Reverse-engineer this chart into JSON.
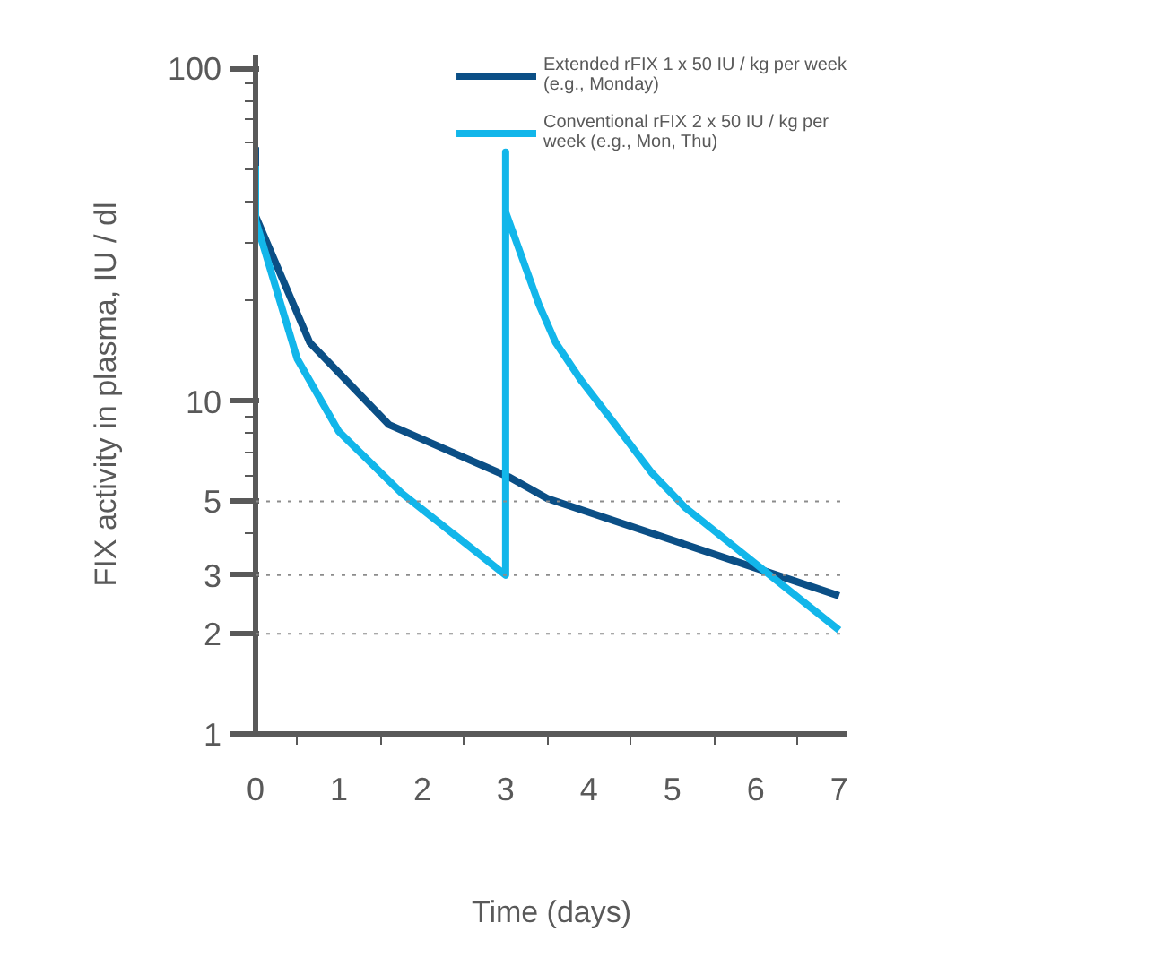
{
  "chart_data": {
    "type": "line",
    "xlabel": "Time (days)",
    "ylabel": "FIX activity in plasma, IU / dl",
    "log": "y",
    "xlim": [
      0,
      7.1
    ],
    "ylim": [
      1,
      110
    ],
    "xticks": [
      0,
      1,
      2,
      3,
      4,
      5,
      6,
      7,
      {
        "value": 0.5,
        "label": null
      },
      {
        "value": 1.5,
        "label": null
      },
      {
        "value": 2.5,
        "label": null
      },
      {
        "value": 3.5,
        "label": null
      },
      {
        "value": 4.5,
        "label": null
      },
      {
        "value": 5.5,
        "label": null
      },
      {
        "value": 6.5,
        "label": null
      }
    ],
    "yticks": [
      1,
      2,
      3,
      5,
      10,
      100,
      {
        "value": 4,
        "label": null
      },
      {
        "value": 6,
        "label": null
      },
      {
        "value": 7,
        "label": null
      },
      {
        "value": 8,
        "label": null
      },
      {
        "value": 9,
        "label": null
      },
      {
        "value": 20,
        "label": null
      },
      {
        "value": 30,
        "label": null
      },
      {
        "value": 40,
        "label": null
      },
      {
        "value": 50,
        "label": null
      },
      {
        "value": 60,
        "label": null
      },
      {
        "value": 70,
        "label": null
      },
      {
        "value": 80,
        "label": null
      },
      {
        "value": 90,
        "label": null
      }
    ],
    "grid": false,
    "legend": "top right",
    "line_style": "solid",
    "ref_lines": [
      {
        "axis": "y",
        "value": 5,
        "label": null,
        "color": "#8c8c8c",
        "line_style": "dotted"
      },
      {
        "axis": "y",
        "value": 3,
        "label": null,
        "color": "#8c8c8c",
        "line_style": "dotted"
      },
      {
        "axis": "y",
        "value": 2,
        "label": null,
        "color": "#8c8c8c",
        "line_style": "dotted"
      }
    ],
    "series": [
      {
        "name": "Extended rFIX 1 x 50 IU / kg per week (e.g., Monday)",
        "color": "#0b4f86",
        "x": [
          0,
          0,
          0.65,
          1.6,
          3.05,
          3.5,
          7
        ],
        "values": [
          58,
          36,
          15,
          8.5,
          5.9,
          5.1,
          2.6
        ]
      },
      {
        "name": "Conventional rFIX 2 x 50 IU / kg per week (e.g., Mon, Thu)",
        "color": "#12b6ea",
        "x": [
          0,
          0,
          0.5,
          1,
          1.75,
          3,
          3,
          3,
          3.4,
          3.6,
          3.9,
          4.3,
          4.75,
          5.15,
          6.1,
          7
        ],
        "values": [
          51,
          35,
          13.4,
          8.1,
          5.3,
          3,
          56,
          37,
          19.5,
          15,
          11.6,
          8.6,
          6.1,
          4.8,
          3.1,
          2.05
        ]
      }
    ]
  }
}
